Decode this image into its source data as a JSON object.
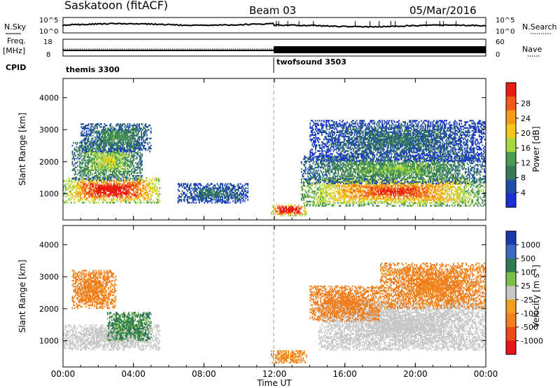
{
  "header": {
    "station": "Saskatoon (fitACF)",
    "beam": "Beam 03",
    "date": "05/Mar/2016"
  },
  "top_panels": {
    "nsky_label": "N.Sky",
    "nsky_ticks": [
      "10^5",
      "10^0"
    ],
    "nsearch_label": "N.Search",
    "nsearch_ticks": [
      "10^5",
      "10^0"
    ],
    "freq_label": "Freq.",
    "freq_unit": "[MHz]",
    "freq_ticks": [
      "18",
      "8"
    ],
    "nave_label": "Nave",
    "nave_ticks": [
      "60",
      "0"
    ],
    "cpid_label": "CPID",
    "cpid_segments": [
      {
        "name": "themis 3300",
        "start_hour": 0,
        "end_hour": 12
      },
      {
        "name": "twofsound 3503",
        "start_hour": 12,
        "end_hour": 24
      }
    ]
  },
  "colors": {
    "power": [
      "#1a2fd6",
      "#1f4ea6",
      "#3a7a5a",
      "#4a9a52",
      "#a8d840",
      "#f2c81a",
      "#f39a1a",
      "#f05a1a",
      "#e81c10"
    ],
    "velocity": [
      "#1a3aa8",
      "#3a6abf",
      "#2f7a50",
      "#7ac048",
      "#c8c8c8",
      "#f0a020",
      "#f08020",
      "#ee4a18",
      "#e8141a"
    ]
  },
  "chart_data": [
    {
      "type": "heatmap",
      "panel": "power",
      "xlabel": "Time UT",
      "ylabel": "Slant Range [km]",
      "xlim": [
        0,
        24
      ],
      "ylim": [
        180,
        4600
      ],
      "x_ticks": [
        "00:00",
        "04:00",
        "08:00",
        "12:00",
        "16:00",
        "20:00",
        "00:00"
      ],
      "y_ticks": [
        "1000",
        "2000",
        "3000",
        "4000"
      ],
      "colorbar_title": "Power [dB]",
      "colorbar_ticks": [
        "4",
        "8",
        "12",
        "16",
        "20",
        "24",
        "28"
      ],
      "colorbar_range": [
        0,
        30
      ],
      "regions": [
        {
          "t0": 0.0,
          "t1": 5.5,
          "r0": 700,
          "r1": 1500,
          "value": 24
        },
        {
          "t0": 0.5,
          "t1": 4.5,
          "r0": 1400,
          "r1": 2600,
          "value": 12
        },
        {
          "t0": 1.0,
          "t1": 5.0,
          "r0": 2300,
          "r1": 3200,
          "value": 8
        },
        {
          "t0": 6.5,
          "t1": 10.5,
          "r0": 700,
          "r1": 1300,
          "value": 6
        },
        {
          "t0": 11.8,
          "t1": 13.8,
          "r0": 300,
          "r1": 650,
          "value": 28
        },
        {
          "t0": 13.5,
          "t1": 24.0,
          "r0": 600,
          "r1": 1500,
          "value": 20
        },
        {
          "t0": 13.5,
          "t1": 24.0,
          "r0": 1300,
          "r1": 2200,
          "value": 10
        },
        {
          "t0": 14.0,
          "t1": 24.0,
          "r0": 2000,
          "r1": 3300,
          "value": 6
        }
      ]
    },
    {
      "type": "heatmap",
      "panel": "velocity",
      "xlabel": "Time UT",
      "ylabel": "Slant Range [km]",
      "xlim": [
        0,
        24
      ],
      "ylim": [
        180,
        4600
      ],
      "x_ticks": [
        "00:00",
        "04:00",
        "08:00",
        "12:00",
        "16:00",
        "20:00",
        "00:00"
      ],
      "y_ticks": [
        "1000",
        "2000",
        "3000",
        "4000"
      ],
      "colorbar_title": "Velocity [m s",
      "colorbar_title_sup": "-1",
      "colorbar_title_end": "]",
      "colorbar_ticks": [
        "1000",
        "500",
        "100",
        "25",
        "-25",
        "-100",
        "-500",
        "-1000"
      ],
      "regions": [
        {
          "t0": 0.0,
          "t1": 5.5,
          "r0": 700,
          "r1": 1500,
          "value": 0
        },
        {
          "t0": 2.5,
          "t1": 5.0,
          "r0": 1000,
          "r1": 1900,
          "value": 150
        },
        {
          "t0": 0.5,
          "t1": 3.0,
          "r0": 2000,
          "r1": 3200,
          "value": -200
        },
        {
          "t0": 11.8,
          "t1": 13.8,
          "r0": 300,
          "r1": 700,
          "value": -150
        },
        {
          "t0": 14.5,
          "t1": 24.0,
          "r0": 700,
          "r1": 2200,
          "value": 0
        },
        {
          "t0": 14.0,
          "t1": 18.0,
          "r0": 1600,
          "r1": 2700,
          "value": -300
        },
        {
          "t0": 18.0,
          "t1": 24.0,
          "r0": 2000,
          "r1": 3400,
          "value": -200
        }
      ]
    }
  ]
}
